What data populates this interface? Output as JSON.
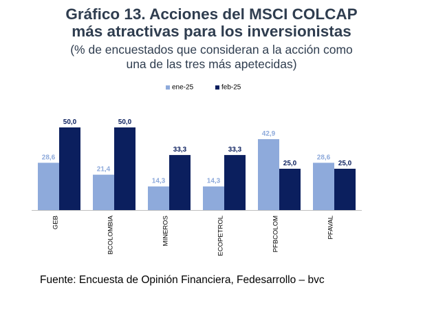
{
  "header": {
    "title_line1": "Gráfico 13. Acciones del MSCI COLCAP",
    "title_line2": "más atractivas para los inversionistas",
    "subtitle_line1": "(% de encuestados que consideran a la acción como",
    "subtitle_line2": "una de las tres más apetecidas)"
  },
  "footer": {
    "source": "Fuente: Encuesta de Opinión Financiera, Fedesarrollo – bvc"
  },
  "chart_data": {
    "type": "bar",
    "categories": [
      "GEB",
      "BCOLOMBIA",
      "MINEROS",
      "ECOPETROL",
      "PFBCOLOM",
      "PFAVAL"
    ],
    "series": [
      {
        "name": "ene-25",
        "color": "#8eaadb",
        "label_color": "#8eaadb",
        "values": [
          28.6,
          21.4,
          14.3,
          14.3,
          42.9,
          28.6
        ],
        "labels": [
          "28,6",
          "21,4",
          "14,3",
          "14,3",
          "42,9",
          "28,6"
        ]
      },
      {
        "name": "feb-25",
        "color": "#0b1f5e",
        "label_color": "#0b1f5e",
        "values": [
          50.0,
          50.0,
          33.3,
          33.3,
          25.0,
          25.0
        ],
        "labels": [
          "50,0",
          "50,0",
          "33,3",
          "33,3",
          "25,0",
          "25,0"
        ]
      }
    ],
    "ylim": [
      0,
      50
    ],
    "grid": false,
    "legend_position": "top-center",
    "xlabel": "",
    "ylabel": ""
  }
}
